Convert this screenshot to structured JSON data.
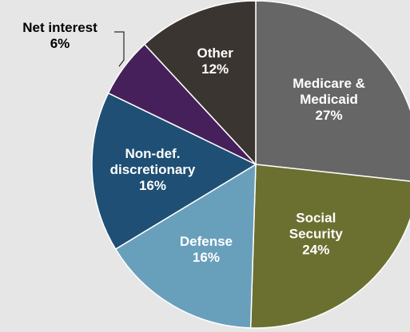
{
  "chart_data": {
    "type": "pie",
    "slices": [
      {
        "label_lines": [
          "Medicare &",
          "Medicaid"
        ],
        "value": 27,
        "value_label": "27%",
        "color": "#666666",
        "text_color": "#ffffff"
      },
      {
        "label_lines": [
          "Social",
          "Security"
        ],
        "value": 24,
        "value_label": "24%",
        "color": "#6b7030",
        "text_color": "#ffffff"
      },
      {
        "label_lines": [
          "Defense"
        ],
        "value": 16,
        "value_label": "16%",
        "color": "#68a0bc",
        "text_color": "#ffffff"
      },
      {
        "label_lines": [
          "Non-def.",
          "discretionary"
        ],
        "value": 16,
        "value_label": "16%",
        "color": "#1f4f74",
        "text_color": "#ffffff"
      },
      {
        "label_lines": [
          "Net interest"
        ],
        "value": 6,
        "value_label": "6%",
        "color": "#46205a",
        "text_color": "#000000",
        "label_outside": true
      },
      {
        "label_lines": [
          "Other"
        ],
        "value": 12,
        "value_label": "12%",
        "color": "#3b3532",
        "text_color": "#ffffff"
      }
    ],
    "start_angle_deg": 0,
    "direction": "clockwise"
  }
}
